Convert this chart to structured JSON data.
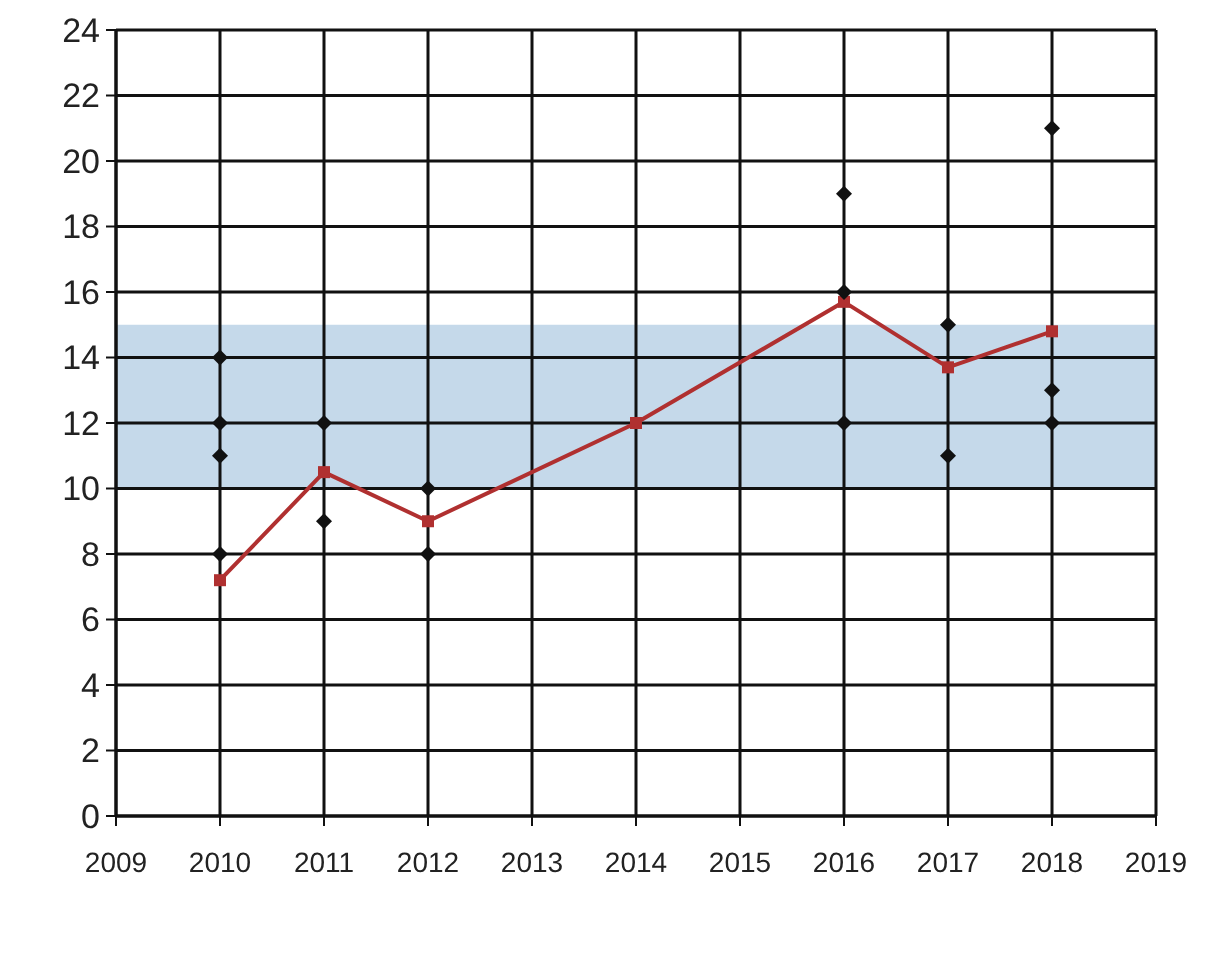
{
  "chart_data": {
    "type": "line",
    "x": [
      2010,
      2011,
      2012,
      2014,
      2016,
      2017,
      2018
    ],
    "series": [
      {
        "color": "#b03030",
        "marker": "square",
        "values": [
          7.2,
          10.5,
          9,
          12,
          15.7,
          13.7,
          14.8
        ]
      },
      {
        "type": "scatter",
        "color": "#111111",
        "marker": "diamond",
        "x": [
          2010,
          2010,
          2010,
          2010,
          2011,
          2011,
          2012,
          2012,
          2016,
          2016,
          2016,
          2017,
          2017,
          2018,
          2018,
          2018
        ],
        "values": [
          14,
          12,
          11,
          8,
          12,
          9,
          10,
          8,
          19,
          16,
          12,
          15,
          11,
          21,
          13,
          12
        ]
      }
    ],
    "xlim": [
      2009,
      2019
    ],
    "xticks": [
      2009,
      2010,
      2011,
      2012,
      2013,
      2014,
      2015,
      2016,
      2017,
      2018,
      2019
    ],
    "ylim": [
      0,
      24
    ],
    "yticks": [
      0,
      2,
      4,
      6,
      8,
      10,
      12,
      14,
      16,
      18,
      20,
      22,
      24
    ],
    "grid": true,
    "bands": [
      {
        "axis": "y",
        "from": 10,
        "to": 15,
        "color": "#c5d9ea"
      }
    ]
  }
}
